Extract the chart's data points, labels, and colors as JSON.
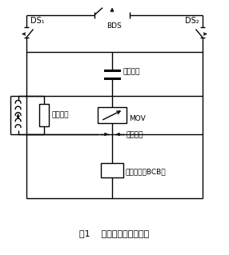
{
  "fig_width": 2.86,
  "fig_height": 3.19,
  "dpi": 100,
  "bg_color": "#ffffff",
  "line_color": "#000000",
  "title_text": "图1    串补装置基本接线图",
  "bds_label": "BDS",
  "ds1_label": "DS₁",
  "ds2_label": "DS₂",
  "cap_label": "电容器组",
  "mov_label": "MOV",
  "damping_label": "阻尼电阵",
  "gap_label": "触发间隙",
  "bcb_label": "旁路开关（BCB）"
}
